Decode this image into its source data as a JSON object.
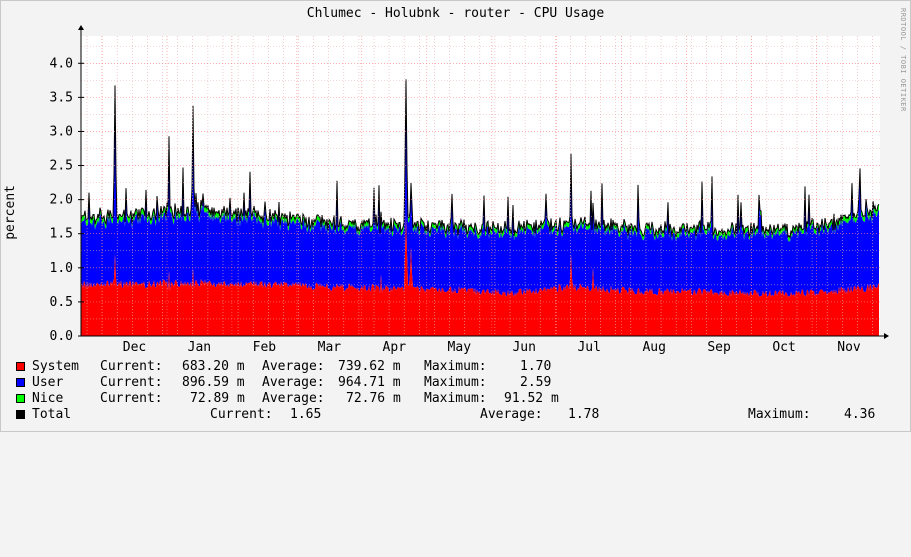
{
  "title": "Chlumec - Holubnk - router - CPU Usage",
  "watermark": "RRDTOOL / TOBI OETIKER",
  "chart_data": {
    "type": "area",
    "title": "Chlumec - Holubnk - router - CPU Usage",
    "ylabel": "percent",
    "xlabel": "",
    "ylim": [
      0,
      4.4
    ],
    "yticks": [
      "0.0",
      "0.5",
      "1.0",
      "1.5",
      "2.0",
      "2.5",
      "3.0",
      "3.5",
      "4.0"
    ],
    "x_tick_labels": [
      "Dec",
      "Jan",
      "Feb",
      "Mar",
      "Apr",
      "May",
      "Jun",
      "Jul",
      "Aug",
      "Sep",
      "Oct",
      "Nov"
    ],
    "grid": true,
    "stacked": true,
    "samples_per_month": 30,
    "month_index": [
      0,
      0,
      1,
      2,
      3,
      4,
      5,
      6,
      7,
      8,
      9,
      10,
      11,
      11
    ],
    "series": [
      {
        "name": "System",
        "color": "#ff0000",
        "monthly_base": [
          0.75,
          0.76,
          0.78,
          0.76,
          0.72,
          0.7,
          0.68,
          0.63,
          0.72,
          0.65,
          0.65,
          0.62,
          0.63,
          0.72
        ],
        "spikes": [
          [
            34,
            1.2
          ],
          [
            88,
            0.95
          ],
          [
            112,
            1.0
          ],
          [
            300,
            0.9
          ],
          [
            325,
            1.75
          ],
          [
            330,
            1.3
          ],
          [
            490,
            1.2
          ],
          [
            512,
            1.0
          ]
        ]
      },
      {
        "name": "User",
        "color": "#0000ff",
        "monthly_base": [
          0.9,
          0.95,
          1.0,
          0.92,
          0.88,
          0.86,
          0.85,
          0.88,
          0.87,
          0.86,
          0.85,
          0.86,
          0.9,
          1.1
        ],
        "spikes": [
          [
            34,
            2.4
          ],
          [
            88,
            1.9
          ],
          [
            112,
            2.3
          ],
          [
            325,
            1.95
          ],
          [
            490,
            1.4
          ]
        ]
      },
      {
        "name": "Nice",
        "color": "#00ff00",
        "monthly_base": [
          0.08,
          0.08,
          0.08,
          0.08,
          0.07,
          0.07,
          0.07,
          0.07,
          0.07,
          0.07,
          0.07,
          0.07,
          0.07,
          0.08
        ],
        "spikes": []
      },
      {
        "name": "Total",
        "color": "#000000"
      }
    ],
    "spike_noise": 0.35
  },
  "legend": [
    {
      "name": "System",
      "color": "#ff0000",
      "current_label": "Current:",
      "current": "683.20 m",
      "average_label": "Average:",
      "average": "739.62 m",
      "maximum_label": "Maximum:",
      "maximum": "1.70"
    },
    {
      "name": "User",
      "color": "#0000ff",
      "current_label": "Current:",
      "current": "896.59 m",
      "average_label": "Average:",
      "average": "964.71 m",
      "maximum_label": "Maximum:",
      "maximum": "2.59"
    },
    {
      "name": "Nice",
      "color": "#00ff00",
      "current_label": "Current:",
      "current": "72.89 m",
      "average_label": "Average:",
      "average": "72.76 m",
      "maximum_label": "Maximum:",
      "maximum": "91.52 m"
    },
    {
      "name": "Total",
      "color": "#000000",
      "current_label": "Current:",
      "current": "1.65",
      "average_label": "Average:",
      "average": "1.78",
      "maximum_label": "Maximum:",
      "maximum": "4.36"
    }
  ]
}
